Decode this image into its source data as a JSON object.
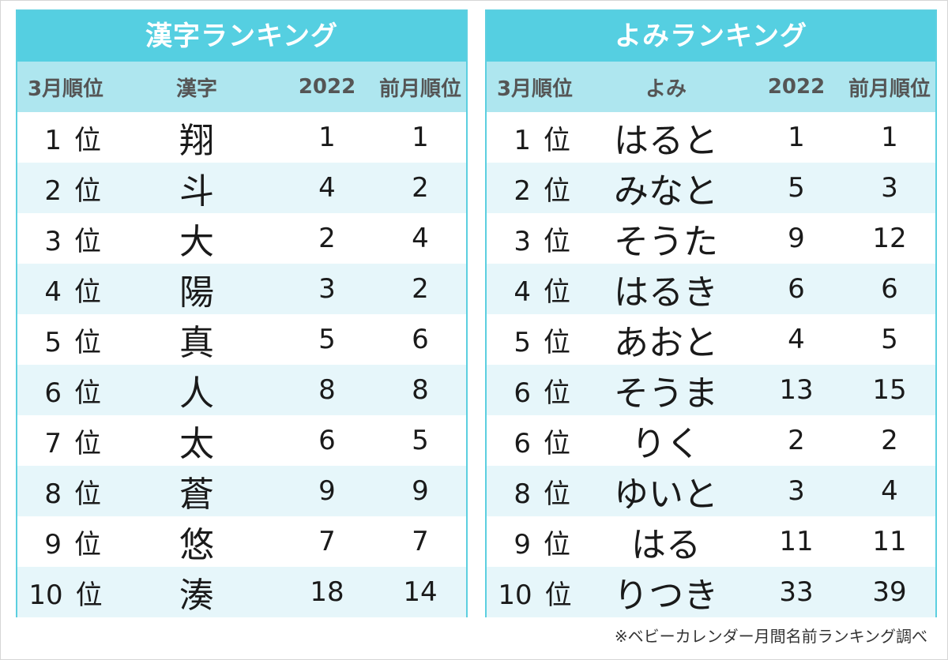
{
  "kanji_table": {
    "title": "漢字ランキング",
    "headers": [
      "3月順位",
      "漢字",
      "2022",
      "前月順位"
    ],
    "rows": [
      {
        "rank": "1",
        "suffix": "位",
        "name": "翔",
        "y2022": "1",
        "prev": "1"
      },
      {
        "rank": "2",
        "suffix": "位",
        "name": "斗",
        "y2022": "4",
        "prev": "2"
      },
      {
        "rank": "3",
        "suffix": "位",
        "name": "大",
        "y2022": "2",
        "prev": "4"
      },
      {
        "rank": "4",
        "suffix": "位",
        "name": "陽",
        "y2022": "3",
        "prev": "2"
      },
      {
        "rank": "5",
        "suffix": "位",
        "name": "真",
        "y2022": "5",
        "prev": "6"
      },
      {
        "rank": "6",
        "suffix": "位",
        "name": "人",
        "y2022": "8",
        "prev": "8"
      },
      {
        "rank": "7",
        "suffix": "位",
        "name": "太",
        "y2022": "6",
        "prev": "5"
      },
      {
        "rank": "8",
        "suffix": "位",
        "name": "蒼",
        "y2022": "9",
        "prev": "9"
      },
      {
        "rank": "9",
        "suffix": "位",
        "name": "悠",
        "y2022": "7",
        "prev": "7"
      },
      {
        "rank": "10",
        "suffix": "位",
        "name": "湊",
        "y2022": "18",
        "prev": "14"
      }
    ]
  },
  "yomi_table": {
    "title": "よみランキング",
    "headers": [
      "3月順位",
      "よみ",
      "2022",
      "前月順位"
    ],
    "rows": [
      {
        "rank": "1",
        "suffix": "位",
        "name": "はると",
        "y2022": "1",
        "prev": "1"
      },
      {
        "rank": "2",
        "suffix": "位",
        "name": "みなと",
        "y2022": "5",
        "prev": "3"
      },
      {
        "rank": "3",
        "suffix": "位",
        "name": "そうた",
        "y2022": "9",
        "prev": "12"
      },
      {
        "rank": "4",
        "suffix": "位",
        "name": "はるき",
        "y2022": "6",
        "prev": "6"
      },
      {
        "rank": "5",
        "suffix": "位",
        "name": "あおと",
        "y2022": "4",
        "prev": "5"
      },
      {
        "rank": "6",
        "suffix": "位",
        "name": "そうま",
        "y2022": "13",
        "prev": "15"
      },
      {
        "rank": "6",
        "suffix": "位",
        "name": "りく",
        "y2022": "2",
        "prev": "2"
      },
      {
        "rank": "8",
        "suffix": "位",
        "name": "ゆいと",
        "y2022": "3",
        "prev": "4"
      },
      {
        "rank": "9",
        "suffix": "位",
        "name": "はる",
        "y2022": "11",
        "prev": "11"
      },
      {
        "rank": "10",
        "suffix": "位",
        "name": "りつき",
        "y2022": "33",
        "prev": "39"
      }
    ]
  },
  "source_note": "※ベビーカレンダー月間名前ランキング調べ",
  "colors": {
    "title_bg": "#55cfe1",
    "header_bg": "#aee6ef",
    "stripe_bg": "#e6f6fa",
    "border": "#5ccfe0"
  }
}
